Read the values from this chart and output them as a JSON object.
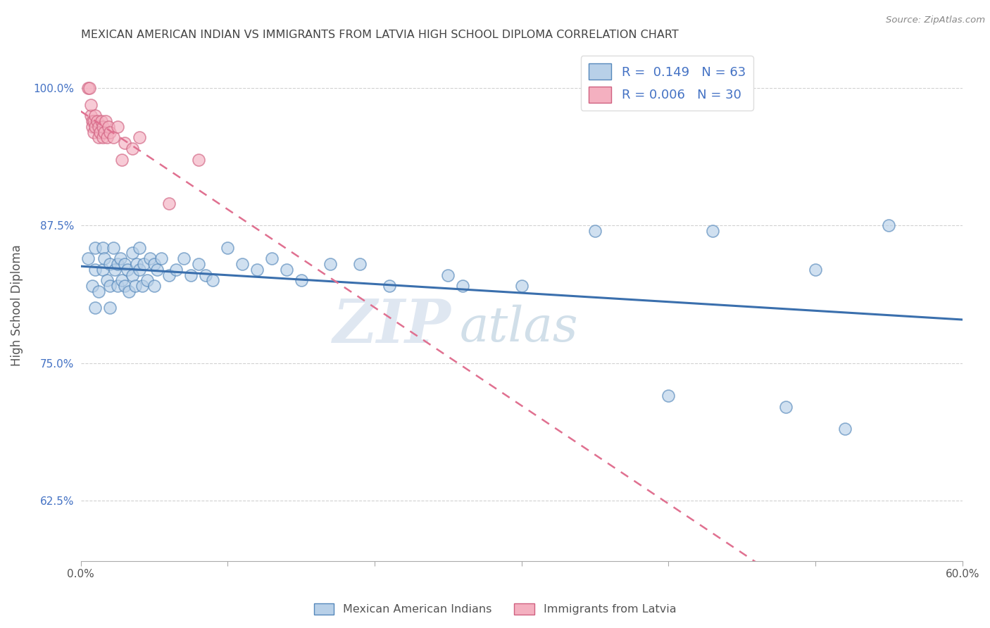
{
  "title": "MEXICAN AMERICAN INDIAN VS IMMIGRANTS FROM LATVIA HIGH SCHOOL DIPLOMA CORRELATION CHART",
  "source": "Source: ZipAtlas.com",
  "ylabel": "High School Diploma",
  "xlim": [
    0.0,
    0.6
  ],
  "ylim": [
    0.57,
    1.035
  ],
  "xticks": [
    0.0,
    0.1,
    0.2,
    0.3,
    0.4,
    0.5,
    0.6
  ],
  "xticklabels": [
    "0.0%",
    "",
    "",
    "",
    "",
    "",
    "60.0%"
  ],
  "yticks": [
    0.625,
    0.75,
    0.875,
    1.0
  ],
  "yticklabels": [
    "62.5%",
    "75.0%",
    "87.5%",
    "100.0%"
  ],
  "blue_R": "0.149",
  "blue_N": "63",
  "pink_R": "0.006",
  "pink_N": "30",
  "legend_label_blue": "Mexican American Indians",
  "legend_label_pink": "Immigrants from Latvia",
  "blue_color": "#b8d0e8",
  "pink_color": "#f4b0c0",
  "blue_edge_color": "#5588bb",
  "pink_edge_color": "#d06080",
  "blue_line_color": "#3a6fad",
  "pink_line_color": "#e07090",
  "watermark_zip": "ZIP",
  "watermark_atlas": "atlas",
  "blue_scatter_x": [
    0.005,
    0.008,
    0.01,
    0.01,
    0.01,
    0.012,
    0.015,
    0.015,
    0.016,
    0.018,
    0.02,
    0.02,
    0.02,
    0.022,
    0.023,
    0.025,
    0.025,
    0.027,
    0.028,
    0.03,
    0.03,
    0.032,
    0.033,
    0.035,
    0.035,
    0.037,
    0.038,
    0.04,
    0.04,
    0.042,
    0.043,
    0.045,
    0.047,
    0.05,
    0.05,
    0.052,
    0.055,
    0.06,
    0.065,
    0.07,
    0.075,
    0.08,
    0.085,
    0.09,
    0.1,
    0.11,
    0.12,
    0.13,
    0.14,
    0.15,
    0.17,
    0.19,
    0.21,
    0.25,
    0.26,
    0.3,
    0.35,
    0.4,
    0.43,
    0.48,
    0.5,
    0.52,
    0.55
  ],
  "blue_scatter_y": [
    0.845,
    0.82,
    0.8,
    0.835,
    0.855,
    0.815,
    0.835,
    0.855,
    0.845,
    0.825,
    0.84,
    0.82,
    0.8,
    0.855,
    0.835,
    0.84,
    0.82,
    0.845,
    0.825,
    0.84,
    0.82,
    0.835,
    0.815,
    0.83,
    0.85,
    0.82,
    0.84,
    0.835,
    0.855,
    0.82,
    0.84,
    0.825,
    0.845,
    0.84,
    0.82,
    0.835,
    0.845,
    0.83,
    0.835,
    0.845,
    0.83,
    0.84,
    0.83,
    0.825,
    0.855,
    0.84,
    0.835,
    0.845,
    0.835,
    0.825,
    0.84,
    0.84,
    0.82,
    0.83,
    0.82,
    0.82,
    0.87,
    0.72,
    0.87,
    0.71,
    0.835,
    0.69,
    0.875
  ],
  "pink_scatter_x": [
    0.005,
    0.006,
    0.007,
    0.007,
    0.008,
    0.008,
    0.009,
    0.009,
    0.01,
    0.01,
    0.011,
    0.012,
    0.012,
    0.013,
    0.014,
    0.015,
    0.015,
    0.016,
    0.017,
    0.018,
    0.019,
    0.02,
    0.022,
    0.025,
    0.028,
    0.03,
    0.035,
    0.04,
    0.06,
    0.08
  ],
  "pink_scatter_y": [
    1.0,
    1.0,
    0.975,
    0.985,
    0.97,
    0.965,
    0.97,
    0.96,
    0.975,
    0.965,
    0.97,
    0.955,
    0.965,
    0.96,
    0.97,
    0.955,
    0.965,
    0.96,
    0.97,
    0.955,
    0.965,
    0.96,
    0.955,
    0.965,
    0.935,
    0.95,
    0.945,
    0.955,
    0.895,
    0.935
  ]
}
